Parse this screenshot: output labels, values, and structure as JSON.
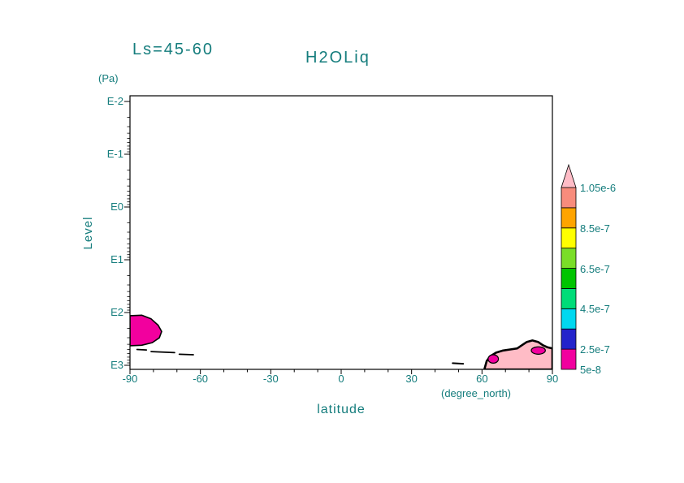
{
  "header": {
    "season": "Ls=45-60",
    "title": "H2OLiq"
  },
  "axes": {
    "y_unit": "(Pa)",
    "y_label": "Level",
    "x_label": "latitude",
    "x_unit": "(degree_north)",
    "y_tick_labels": [
      "E-2",
      "E-1",
      "E0",
      "E1",
      "E2",
      "E3"
    ],
    "x_tick_labels": [
      "-90",
      "-60",
      "-30",
      "0",
      "30",
      "60",
      "90"
    ],
    "x_tick_values": [
      -90,
      -60,
      -30,
      0,
      30,
      60,
      90
    ]
  },
  "colorbar": {
    "labels_top_to_bottom": [
      "1.05e-6",
      "8.5e-7",
      "6.5e-7",
      "4.5e-7",
      "2.5e-7",
      "5e-8"
    ],
    "band_colors_bottom_to_top": [
      "#F2009E",
      "#2323CB",
      "#00D8F0",
      "#00DC78",
      "#00C400",
      "#7ADE28",
      "#FFFF00",
      "#FFA400",
      "#F88C7C"
    ],
    "over_color": "#FFBCC6",
    "label_color": "#157d7d"
  },
  "chart_data": {
    "type": "contour",
    "title": "H2OLiq",
    "season_label": "Ls=45-60",
    "xlabel": "latitude (degree_north)",
    "ylabel": "Level (Pa)",
    "x_range_deg": [
      -90,
      90
    ],
    "x_ticks_deg": [
      -90,
      -60,
      -30,
      0,
      30,
      60,
      90
    ],
    "y_ticks": [
      "E-2",
      "E-1",
      "E0",
      "E1",
      "E2",
      "E3"
    ],
    "y_scale": "log-pressure, E-2 Pa at top to E3 Pa at bottom",
    "contour_level_labels": [
      "5e-8",
      "2.5e-7",
      "4.5e-7",
      "6.5e-7",
      "8.5e-7",
      "1.05e-6"
    ],
    "legend_position": "right",
    "features": [
      {
        "id": "south-polar-cloud",
        "kind": "polygon",
        "fill": "#F2009E",
        "stroke": "#000000",
        "stroke_width": 1.6,
        "approx_value": "5e-8 to 2.5e-7",
        "points": [
          [
            -90,
            2.06
          ],
          [
            -85,
            2.05
          ],
          [
            -81,
            2.12
          ],
          [
            -78,
            2.24
          ],
          [
            -76.5,
            2.36
          ],
          [
            -77.5,
            2.48
          ],
          [
            -80.5,
            2.57
          ],
          [
            -85,
            2.62
          ],
          [
            -90,
            2.63
          ]
        ]
      },
      {
        "id": "south-dash-1",
        "kind": "line",
        "stroke": "#000000",
        "stroke_width": 1.8,
        "points": [
          [
            -87,
            2.7
          ],
          [
            -83,
            2.71
          ]
        ]
      },
      {
        "id": "south-dash-2",
        "kind": "line",
        "stroke": "#000000",
        "stroke_width": 1.8,
        "points": [
          [
            -81,
            2.74
          ],
          [
            -71,
            2.76
          ]
        ]
      },
      {
        "id": "south-dash-3",
        "kind": "line",
        "stroke": "#000000",
        "stroke_width": 1.8,
        "points": [
          [
            -69,
            2.79
          ],
          [
            -63,
            2.8
          ]
        ]
      },
      {
        "id": "north-polar-cloud",
        "kind": "polygon",
        "fill": "#FFBCC6",
        "stroke": "#000000",
        "stroke_width": 2.6,
        "approx_value": "around 1e-6 (pink fill, heavy outline)",
        "points": [
          [
            61,
            3.08
          ],
          [
            62,
            2.92
          ],
          [
            63.5,
            2.83
          ],
          [
            66,
            2.76
          ],
          [
            69,
            2.72
          ],
          [
            72,
            2.7
          ],
          [
            75,
            2.68
          ],
          [
            77,
            2.62
          ],
          [
            79,
            2.56
          ],
          [
            81.5,
            2.53
          ],
          [
            84,
            2.56
          ],
          [
            86,
            2.62
          ],
          [
            88,
            2.66
          ],
          [
            90,
            2.68
          ],
          [
            90,
            3.08
          ]
        ]
      },
      {
        "id": "north-magenta-patch-1",
        "kind": "ellipse",
        "fill": "#F2009E",
        "stroke": "#000000",
        "stroke_width": 1.2,
        "approx_value": "5e-8 to 2.5e-7",
        "center": [
          64.8,
          2.88
        ],
        "rx_deg": 2.2,
        "ry_exp": 0.08
      },
      {
        "id": "north-magenta-patch-2",
        "kind": "ellipse",
        "fill": "#F2009E",
        "stroke": "#000000",
        "stroke_width": 1.2,
        "approx_value": "5e-8 to 2.5e-7",
        "center": [
          84,
          2.72
        ],
        "rx_deg": 3,
        "ry_exp": 0.07
      },
      {
        "id": "north-outlier-dash",
        "kind": "line",
        "stroke": "#000000",
        "stroke_width": 2,
        "points": [
          [
            47.5,
            2.96
          ],
          [
            52,
            2.97
          ]
        ]
      }
    ]
  }
}
